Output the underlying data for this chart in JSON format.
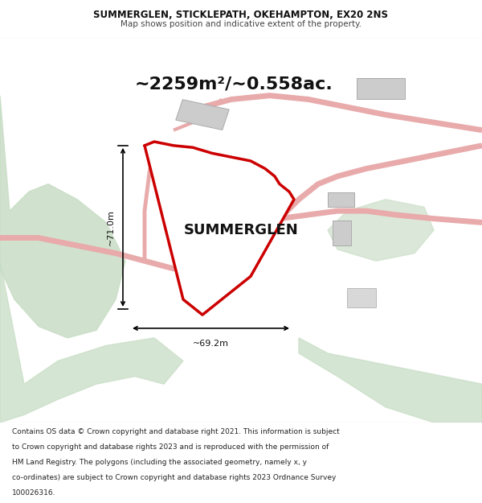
{
  "title_line1": "SUMMERGLEN, STICKLEPATH, OKEHAMPTON, EX20 2NS",
  "title_line2": "Map shows position and indicative extent of the property.",
  "area_text": "~2259m²/~0.558ac.",
  "property_label": "SUMMERGLEN",
  "dim_vertical": "~71.0m",
  "dim_horizontal": "~69.2m",
  "footer_lines": [
    "Contains OS data © Crown copyright and database right 2021. This information is subject",
    "to Crown copyright and database rights 2023 and is reproduced with the permission of",
    "HM Land Registry. The polygons (including the associated geometry, namely x, y",
    "co-ordinates) are subject to Crown copyright and database rights 2023 Ordnance Survey",
    "100026316."
  ],
  "title_fontsize": 8.5,
  "subtitle_fontsize": 7.5,
  "area_fontsize": 16,
  "label_fontsize": 13,
  "dim_fontsize": 8,
  "footer_fontsize": 6.5,
  "green_color": "#c8ddc5",
  "road_color": "#e8aaaa",
  "road_lw": 5,
  "red_color": "#cc0000",
  "red_lw": 2.5,
  "dim_color": "#111111",
  "building_color": "#cccccc",
  "building_edge": "#aaaaaa"
}
